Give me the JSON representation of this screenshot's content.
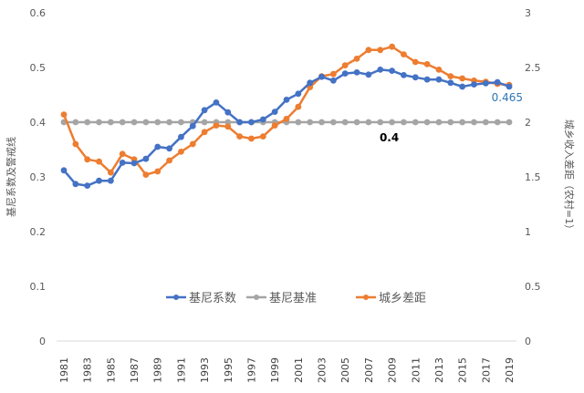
{
  "chart_data": {
    "type": "line",
    "title": "",
    "ylabel": "基尼系数及警戒线",
    "y2label": "城乡收入差距（农村=1）",
    "xlabel": "",
    "ylim": [
      0,
      0.6
    ],
    "y2lim": [
      0,
      3
    ],
    "yticks": [
      "0",
      "0.1",
      "0.2",
      "0.3",
      "0.4",
      "0.5",
      "0.6"
    ],
    "y2ticks": [
      "0",
      "0.5",
      "1",
      "1.5",
      "2",
      "2.5",
      "3"
    ],
    "x": [
      1981,
      1982,
      1983,
      1984,
      1985,
      1986,
      1987,
      1988,
      1989,
      1990,
      1991,
      1992,
      1993,
      1994,
      1995,
      1996,
      1997,
      1998,
      1999,
      2000,
      2001,
      2002,
      2003,
      2004,
      2005,
      2006,
      2007,
      2008,
      2009,
      2010,
      2011,
      2012,
      2013,
      2014,
      2015,
      2016,
      2017,
      2018,
      2019
    ],
    "xtick_labels": [
      "1981",
      "1983",
      "1985",
      "1987",
      "1989",
      "1991",
      "1993",
      "1995",
      "1997",
      "1999",
      "2001",
      "2003",
      "2005",
      "2007",
      "2009",
      "2011",
      "2013",
      "2015",
      "2017",
      "2019"
    ],
    "grid": false,
    "legend_position": "bottom-center",
    "series": [
      {
        "name": "基尼系数",
        "axis": "left",
        "color": "#4472C4",
        "values": [
          0.312,
          0.287,
          0.284,
          0.293,
          0.293,
          0.326,
          0.325,
          0.333,
          0.355,
          0.352,
          0.373,
          0.393,
          0.422,
          0.436,
          0.418,
          0.4,
          0.4,
          0.405,
          0.419,
          0.441,
          0.452,
          0.472,
          0.483,
          0.476,
          0.489,
          0.491,
          0.487,
          0.496,
          0.494,
          0.486,
          0.482,
          0.478,
          0.478,
          0.472,
          0.465,
          0.469,
          0.471,
          0.473,
          0.465
        ]
      },
      {
        "name": "基尼基准",
        "axis": "left",
        "color": "#A5A5A5",
        "values": [
          0.4,
          0.4,
          0.4,
          0.4,
          0.4,
          0.4,
          0.4,
          0.4,
          0.4,
          0.4,
          0.4,
          0.4,
          0.4,
          0.4,
          0.4,
          0.4,
          0.4,
          0.4,
          0.4,
          0.4,
          0.4,
          0.4,
          0.4,
          0.4,
          0.4,
          0.4,
          0.4,
          0.4,
          0.4,
          0.4,
          0.4,
          0.4,
          0.4,
          0.4,
          0.4,
          0.4,
          0.4,
          0.4,
          0.4
        ]
      },
      {
        "name": "城乡差距",
        "axis": "right",
        "color": "#ED7D31",
        "values": [
          2.07,
          1.8,
          1.66,
          1.64,
          1.54,
          1.71,
          1.66,
          1.52,
          1.55,
          1.65,
          1.73,
          1.8,
          1.91,
          1.97,
          1.96,
          1.87,
          1.85,
          1.87,
          1.97,
          2.03,
          2.14,
          2.32,
          2.42,
          2.44,
          2.52,
          2.58,
          2.66,
          2.66,
          2.69,
          2.62,
          2.55,
          2.53,
          2.48,
          2.42,
          2.4,
          2.38,
          2.37,
          2.35,
          2.34
        ]
      }
    ],
    "annotations": [
      {
        "text": "0.4",
        "series": "基尼基准",
        "x": 2009,
        "color": "#000000"
      },
      {
        "text": "0.465",
        "series": "基尼系数",
        "x": 2019,
        "color": "#2E75B6"
      }
    ]
  }
}
